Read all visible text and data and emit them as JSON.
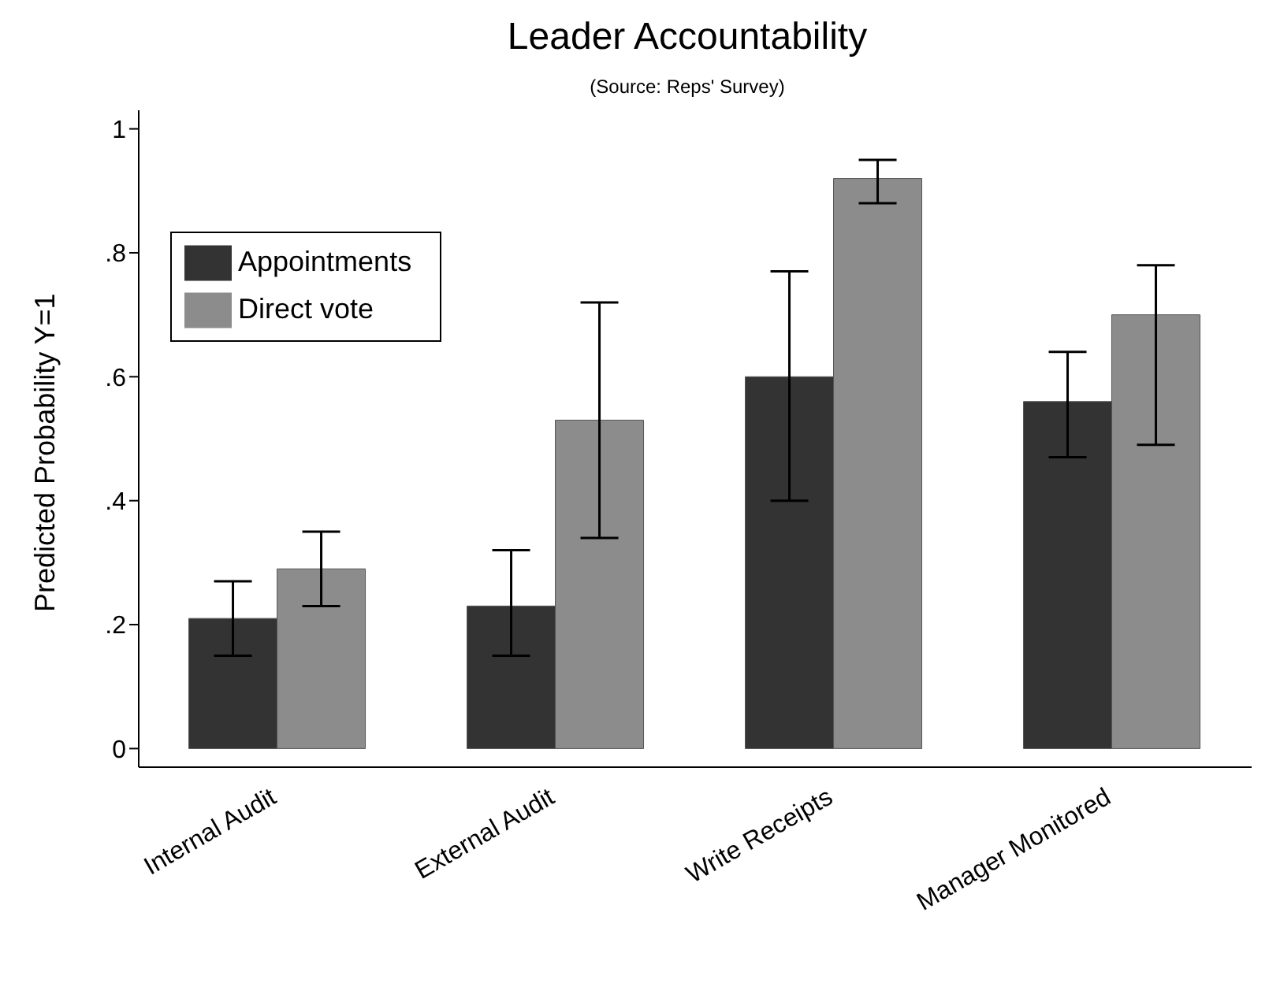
{
  "chart_data": {
    "type": "bar",
    "title": "Leader Accountability",
    "subtitle": "(Source: Reps' Survey)",
    "ylabel": "Predicted Probability Y=1",
    "categories": [
      "Internal Audit",
      "External Audit",
      "Write Receipts",
      "Manager Monitored"
    ],
    "series": [
      {
        "name": "Appointments",
        "color": "#333333",
        "values": [
          0.21,
          0.23,
          0.6,
          0.56
        ],
        "errors": [
          [
            0.15,
            0.27
          ],
          [
            0.15,
            0.32
          ],
          [
            0.4,
            0.77
          ],
          [
            0.47,
            0.64
          ]
        ]
      },
      {
        "name": "Direct vote",
        "color": "#8c8c8c",
        "values": [
          0.29,
          0.53,
          0.92,
          0.7
        ],
        "errors": [
          [
            0.23,
            0.35
          ],
          [
            0.34,
            0.72
          ],
          [
            0.88,
            0.95
          ],
          [
            0.49,
            0.78
          ]
        ]
      }
    ],
    "ylim": [
      -0.03,
      1.03
    ],
    "yticks": [
      0,
      {
        "value": 0.2,
        "label": ".2"
      },
      {
        "value": 0.4,
        "label": ".4"
      },
      {
        "value": 0.6,
        "label": ".6"
      },
      {
        "value": 0.8,
        "label": ".8"
      },
      1
    ],
    "grid": false,
    "legend": "top left"
  }
}
